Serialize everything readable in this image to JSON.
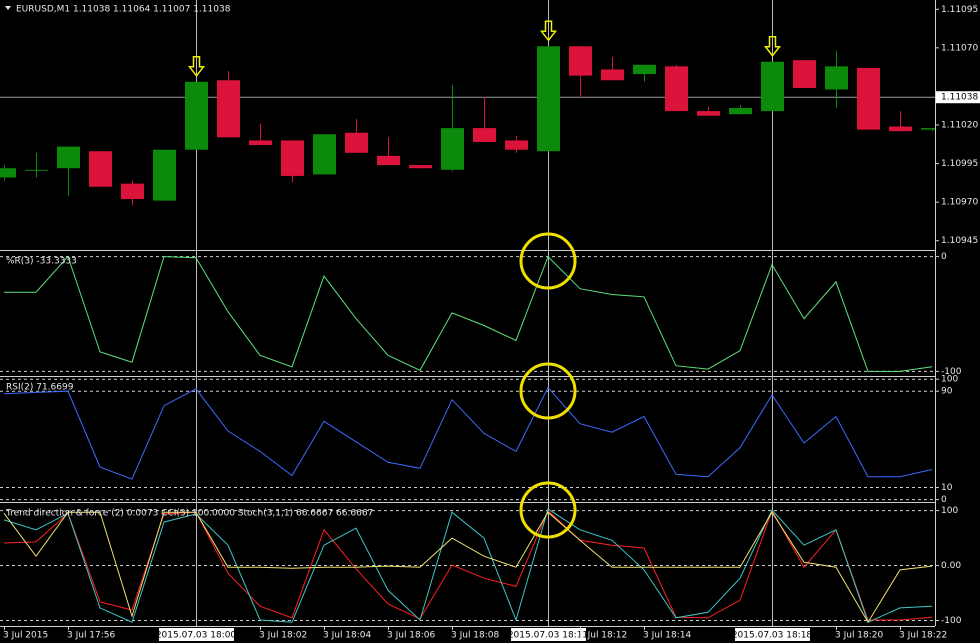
{
  "chart_data": [
    {
      "type": "candlestick",
      "title": "EURUSD,M1  1.11038 1.11064 1.11007 1.11038",
      "categories": [
        "3 Jul 2015",
        null,
        "3 Jul 17:56",
        null,
        null,
        null,
        "2015.07.03 18:00",
        null,
        "3 Jul 18:02",
        null,
        "3 Jul 18:04",
        null,
        "3 Jul 18:06",
        null,
        "3 Jul 18:08",
        null,
        null,
        "2015.07.03 18:11",
        "3 Jul 18:12",
        null,
        "3 Jul 18:14",
        null,
        null,
        null,
        "2015.07.03 18:18",
        null,
        "3 Jul 18:20",
        null,
        "3 Jul 18:22",
        null
      ],
      "open": [
        1.10986,
        1.10991,
        1.10992,
        1.11003,
        1.10982,
        1.10971,
        1.11004,
        1.11049,
        1.1101,
        1.1101,
        1.10988,
        1.11015,
        1.11,
        1.10994,
        1.10991,
        1.11018,
        1.1101,
        1.11003,
        1.11071,
        1.11056,
        1.11053,
        1.11058,
        1.11029,
        1.11027,
        1.11029,
        1.11062,
        1.11043,
        1.11057,
        1.11019,
        1.11017
      ],
      "high": [
        1.10994,
        1.11002,
        1.11006,
        1.11003,
        1.10984,
        1.11004,
        1.11048,
        1.11055,
        1.11021,
        1.1101,
        1.11014,
        1.11024,
        1.11012,
        1.10994,
        1.11046,
        1.11038,
        1.11013,
        1.11071,
        1.11071,
        1.11064,
        1.11059,
        1.11059,
        1.11032,
        1.11033,
        1.11061,
        1.11062,
        1.11068,
        1.11057,
        1.11029,
        1.11018
      ],
      "low": [
        1.10984,
        1.10986,
        1.10974,
        1.1098,
        1.10968,
        1.10971,
        1.11004,
        1.11012,
        1.11007,
        1.10983,
        1.10988,
        1.11002,
        1.10994,
        1.10992,
        1.1099,
        1.11009,
        1.11002,
        1.11003,
        1.11038,
        1.11049,
        1.11048,
        1.11029,
        1.11026,
        1.11027,
        1.11029,
        1.11044,
        1.11031,
        1.11017,
        1.11016,
        1.11016
      ],
      "close": [
        1.10992,
        1.10991,
        1.11006,
        1.1098,
        1.10972,
        1.11004,
        1.11048,
        1.11012,
        1.11007,
        1.10987,
        1.11014,
        1.11002,
        1.10994,
        1.10992,
        1.11018,
        1.11009,
        1.11004,
        1.11071,
        1.11052,
        1.11049,
        1.11059,
        1.11029,
        1.11026,
        1.11031,
        1.11061,
        1.11044,
        1.11058,
        1.11017,
        1.11016,
        1.11018
      ],
      "up_color": "#0b8a0b",
      "down_color": "#dc143c",
      "current_price": 1.11038,
      "signal_bars": [
        "2015.07.03 18:00",
        "2015.07.03 18:11",
        "2015.07.03 18:18"
      ],
      "ylim": [
        1.10939,
        1.11101
      ],
      "yticks": [
        1.11095,
        {
          "value": 1.1107,
          "label": "1.11070"
        },
        {
          "value": 1.1102,
          "label": "1.11020"
        },
        1.10995,
        {
          "value": 1.1097,
          "label": "1.10970"
        },
        1.10945
      ],
      "grid": false
    },
    {
      "type": "line",
      "title": "%R(3) -33.3333",
      "series": [
        {
          "color": "#5ee07e",
          "values": [
            -31,
            -31,
            0,
            -83,
            -92,
            0,
            -1,
            -48,
            -86,
            -96,
            -17,
            -54,
            -86,
            -99,
            -49,
            -60,
            -73,
            0,
            -28,
            -33,
            -35,
            -95,
            -98,
            -82,
            -7,
            -54,
            -22,
            -100,
            -100,
            -96
          ]
        }
      ],
      "ylim": [
        -104,
        4
      ],
      "yticks": [
        0,
        -100
      ],
      "grid": true
    },
    {
      "type": "line",
      "title": "RSI(2) 71.6699",
      "series": [
        {
          "color": "#3d6bff",
          "values": [
            88,
            89,
            90,
            27,
            17,
            78,
            92,
            57,
            40,
            20,
            65,
            48,
            31,
            26,
            83,
            55,
            40,
            93,
            63,
            56,
            69,
            21,
            19,
            43,
            87,
            47,
            69,
            19,
            19,
            25
          ]
        }
      ],
      "ylim": [
        -2,
        101
      ],
      "yticks": [
        100,
        90,
        10,
        0
      ],
      "grid": true
    },
    {
      "type": "line",
      "title": "Trend direction & force (2) 0.0073  CCI(3) 100.0000  Stoch(3,1,1) 66.6667 66.6667",
      "series": [
        {
          "color": "#ff2020",
          "values": [
            41,
            43,
            95,
            -66,
            -81,
            94,
            97,
            -14,
            -74,
            -95,
            65,
            -6,
            -70,
            -97,
            1,
            -23,
            -38,
            100,
            46,
            37,
            32,
            -94,
            -95,
            -63,
            100,
            -3,
            65,
            -99,
            -99,
            -94
          ]
        },
        {
          "color": "#3fc6c6",
          "values": [
            83,
            65,
            95,
            -77,
            -103,
            79,
            94,
            37,
            -99,
            -103,
            37,
            68,
            -45,
            -99,
            97,
            50,
            -99,
            103,
            65,
            46,
            -8,
            -95,
            -85,
            -23,
            101,
            37,
            65,
            -103,
            -77,
            -74
          ]
        },
        {
          "color": "#f0e070",
          "values": [
            95,
            17,
            97,
            97,
            -92,
            97,
            97,
            -3,
            -3,
            -5,
            -3,
            -3,
            -1,
            -3,
            50,
            17,
            -3,
            97,
            46,
            -3,
            -3,
            -3,
            -3,
            -3,
            97,
            6,
            -3,
            -103,
            -8,
            -1
          ]
        }
      ],
      "ylim": [
        -110,
        112
      ],
      "yticks": [
        100,
        {
          "value": 0,
          "label": "0.00"
        },
        -100
      ],
      "grid": true
    }
  ]
}
